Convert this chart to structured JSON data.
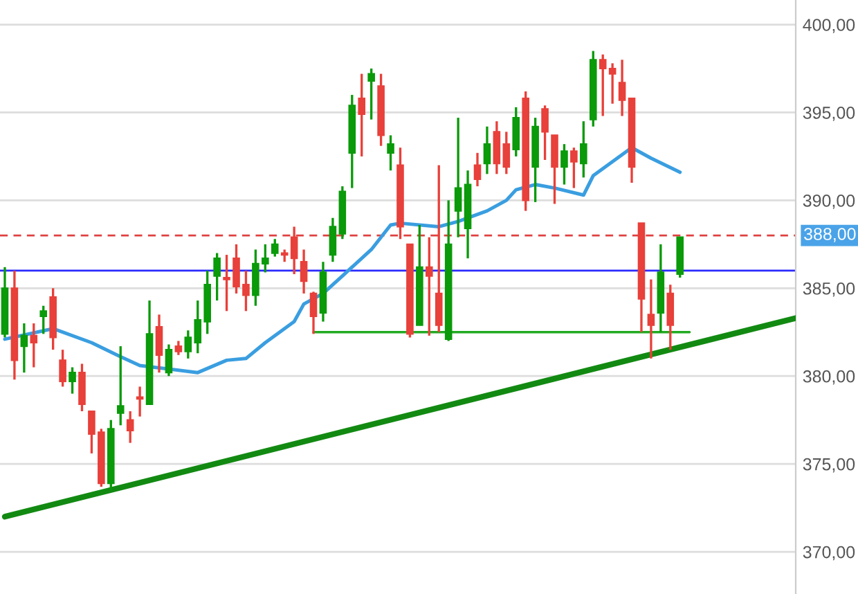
{
  "chart_data": {
    "type": "candlestick",
    "categories": [
      null,
      null,
      null,
      null,
      null,
      null,
      null,
      null,
      null,
      null,
      null,
      null,
      null,
      null,
      null,
      null,
      null,
      null,
      null,
      null,
      null,
      null,
      null,
      null,
      null,
      null,
      null,
      null,
      null,
      null,
      null,
      null,
      null,
      null,
      null,
      null,
      null,
      null,
      null,
      null,
      null,
      null,
      null,
      null,
      null,
      null,
      null,
      null,
      null,
      null,
      null,
      null,
      null,
      null,
      null,
      null,
      null,
      null,
      null,
      null,
      null,
      null,
      null,
      null,
      null,
      null,
      null,
      null,
      null,
      null,
      null,
      null,
      null,
      null,
      null,
      null,
      null,
      null,
      null,
      null,
      null,
      null,
      null
    ],
    "ohlc": [
      [
        382.4,
        386.2,
        382.2,
        385.0
      ],
      [
        385.0,
        386.0,
        379.8,
        380.9
      ],
      [
        381.7,
        383.0,
        380.2,
        382.3
      ],
      [
        382.3,
        383.0,
        380.5,
        381.9
      ],
      [
        383.4,
        384.0,
        382.4,
        383.7
      ],
      [
        384.5,
        385.0,
        381.5,
        382.2
      ],
      [
        380.9,
        381.5,
        379.4,
        379.7
      ],
      [
        379.7,
        380.5,
        379.0,
        380.2
      ],
      [
        380.2,
        380.7,
        378.0,
        378.4
      ],
      [
        378.0,
        378.0,
        375.6,
        376.7
      ],
      [
        376.8,
        377.0,
        373.7,
        373.9
      ],
      [
        373.9,
        377.5,
        373.5,
        377.0
      ],
      [
        377.9,
        381.7,
        377.2,
        378.3
      ],
      [
        377.5,
        378.0,
        376.2,
        376.9
      ],
      [
        378.8,
        379.4,
        377.7,
        378.7
      ],
      [
        378.4,
        384.3,
        378.4,
        382.4
      ],
      [
        382.8,
        383.5,
        380.2,
        381.2
      ],
      [
        380.2,
        381.8,
        380.0,
        381.5
      ],
      [
        381.7,
        382.0,
        381.2,
        381.4
      ],
      [
        381.4,
        382.6,
        381.0,
        382.2
      ],
      [
        381.9,
        384.3,
        381.3,
        383.2
      ],
      [
        383.1,
        386.0,
        382.4,
        385.2
      ],
      [
        385.7,
        387.0,
        384.3,
        386.7
      ],
      [
        385.6,
        386.9,
        383.7,
        385.5
      ],
      [
        386.7,
        387.5,
        384.7,
        385.1
      ],
      [
        385.2,
        386.0,
        383.7,
        384.6
      ],
      [
        384.6,
        387.2,
        384.0,
        386.4
      ],
      [
        386.4,
        387.5,
        385.9,
        386.7
      ],
      [
        387.0,
        387.8,
        386.8,
        387.5
      ],
      [
        387.0,
        387.2,
        386.5,
        386.9
      ],
      [
        387.9,
        388.5,
        385.8,
        386.7
      ],
      [
        386.5,
        387.2,
        384.7,
        385.4
      ],
      [
        384.7,
        384.8,
        382.4,
        383.4
      ],
      [
        383.6,
        386.5,
        383.1,
        385.9
      ],
      [
        386.9,
        389.0,
        386.5,
        388.5
      ],
      [
        388.1,
        390.8,
        387.8,
        390.5
      ],
      [
        392.7,
        396.0,
        390.7,
        395.4
      ],
      [
        395.8,
        397.2,
        392.5,
        394.9
      ],
      [
        396.8,
        397.5,
        394.6,
        397.2
      ],
      [
        396.5,
        397.2,
        393.1,
        393.7
      ],
      [
        392.7,
        393.7,
        391.7,
        393.2
      ],
      [
        392.0,
        393.0,
        387.8,
        388.5
      ],
      [
        387.5,
        387.5,
        382.2,
        382.4
      ],
      [
        382.9,
        388.6,
        382.9,
        386.2
      ],
      [
        386.2,
        387.9,
        382.3,
        385.7
      ],
      [
        384.7,
        392.0,
        382.5,
        382.9
      ],
      [
        382.1,
        390.0,
        382.0,
        387.5
      ],
      [
        389.4,
        394.7,
        387.9,
        390.7
      ],
      [
        388.4,
        391.7,
        386.7,
        390.9
      ],
      [
        392.0,
        392.7,
        390.8,
        391.2
      ],
      [
        392.1,
        394.2,
        391.5,
        393.2
      ],
      [
        393.9,
        394.5,
        391.5,
        392.1
      ],
      [
        393.2,
        393.9,
        391.5,
        391.9
      ],
      [
        392.9,
        395.3,
        392.5,
        394.7
      ],
      [
        395.8,
        396.2,
        389.4,
        390.0
      ],
      [
        391.9,
        394.7,
        389.9,
        394.2
      ],
      [
        395.2,
        395.4,
        392.3,
        393.9
      ],
      [
        393.7,
        393.7,
        389.8,
        391.9
      ],
      [
        391.9,
        393.2,
        390.9,
        392.8
      ],
      [
        392.8,
        393.0,
        390.7,
        392.2
      ],
      [
        392.1,
        394.5,
        391.3,
        393.2
      ],
      [
        394.6,
        398.5,
        394.2,
        398.0
      ],
      [
        398.0,
        398.3,
        394.8,
        397.5
      ],
      [
        397.5,
        397.8,
        395.5,
        397.2
      ],
      [
        396.7,
        398.0,
        394.8,
        395.7
      ],
      [
        395.8,
        395.8,
        391.0,
        391.9
      ],
      [
        388.7,
        388.7,
        382.5,
        384.4
      ],
      [
        383.5,
        385.5,
        381.0,
        382.9
      ],
      [
        383.6,
        387.5,
        382.5,
        385.9
      ],
      [
        384.7,
        385.2,
        381.5,
        382.9
      ],
      [
        385.8,
        387.9,
        385.6,
        387.9
      ],
      null,
      null,
      null,
      null,
      null,
      null,
      null,
      null,
      null,
      null,
      null,
      null
    ],
    "series": [
      {
        "type": "line",
        "color": "#3a9ee0",
        "values": [
          382.1,
          null,
          null,
          null,
          null,
          382.7,
          null,
          null,
          null,
          381.9,
          null,
          null,
          381.1,
          null,
          380.6,
          null,
          null,
          null,
          null,
          null,
          380.2,
          null,
          null,
          380.9,
          null,
          381.0,
          null,
          381.9,
          null,
          null,
          383.1,
          384.1,
          null,
          384.7,
          null,
          385.7,
          null,
          null,
          387.2,
          null,
          388.6,
          388.7,
          null,
          null,
          null,
          388.5,
          null,
          388.8,
          null,
          null,
          389.4,
          null,
          390.0,
          390.6,
          null,
          390.9,
          null,
          390.7,
          null,
          null,
          390.3,
          391.4,
          null,
          null,
          null,
          393.0,
          null,
          392.4,
          null,
          null,
          391.6,
          null,
          null,
          null,
          null,
          null,
          null,
          null,
          null,
          null,
          null,
          null,
          null
        ]
      },
      {
        "type": "line",
        "color": "#128a12",
        "values": [
          372.0,
          null,
          null,
          null,
          null,
          null,
          null,
          null,
          null,
          null,
          null,
          null,
          null,
          null,
          null,
          null,
          null,
          null,
          null,
          null,
          null,
          null,
          null,
          null,
          null,
          null,
          null,
          null,
          null,
          null,
          null,
          null,
          null,
          null,
          null,
          null,
          null,
          null,
          null,
          null,
          null,
          null,
          null,
          null,
          null,
          null,
          null,
          null,
          null,
          null,
          null,
          null,
          null,
          null,
          null,
          null,
          null,
          null,
          null,
          null,
          null,
          null,
          null,
          null,
          null,
          null,
          null,
          null,
          null,
          null,
          null,
          null,
          null,
          null,
          null,
          null,
          null,
          null,
          null,
          null,
          null,
          null,
          383.3
        ]
      },
      {
        "type": "line",
        "color": "#22aa22",
        "values": [
          null,
          null,
          null,
          null,
          null,
          null,
          null,
          null,
          null,
          null,
          null,
          null,
          null,
          null,
          null,
          null,
          null,
          null,
          null,
          null,
          null,
          null,
          null,
          null,
          null,
          null,
          null,
          null,
          null,
          null,
          null,
          null,
          382.5,
          null,
          null,
          null,
          null,
          null,
          null,
          null,
          null,
          null,
          null,
          null,
          null,
          null,
          null,
          null,
          null,
          null,
          null,
          null,
          null,
          null,
          null,
          null,
          null,
          null,
          null,
          null,
          null,
          null,
          null,
          null,
          null,
          null,
          null,
          null,
          null,
          null,
          null,
          382.5,
          null,
          null,
          null,
          null,
          null,
          null,
          null,
          null,
          null,
          null,
          null
        ]
      }
    ],
    "ref_lines": [
      {
        "axis": "y",
        "value": 386.0,
        "color": "#2a2aff",
        "line_style": "solid"
      },
      {
        "axis": "y",
        "value": 388.0,
        "label": "388,00",
        "color": "#e04040",
        "line_style": "dashed"
      }
    ],
    "ylim": [
      367.6,
      401.4
    ],
    "yticks": [
      {
        "value": 370,
        "label": "370,00"
      },
      {
        "value": 375,
        "label": "375,00"
      },
      {
        "value": 380,
        "label": "380,00"
      },
      {
        "value": 385,
        "label": "385,00"
      },
      {
        "value": 390,
        "label": "390,00"
      },
      {
        "value": 395,
        "label": "395,00"
      },
      {
        "value": 400,
        "label": "400,00"
      }
    ],
    "grid": "y",
    "tick_labels": "y"
  }
}
